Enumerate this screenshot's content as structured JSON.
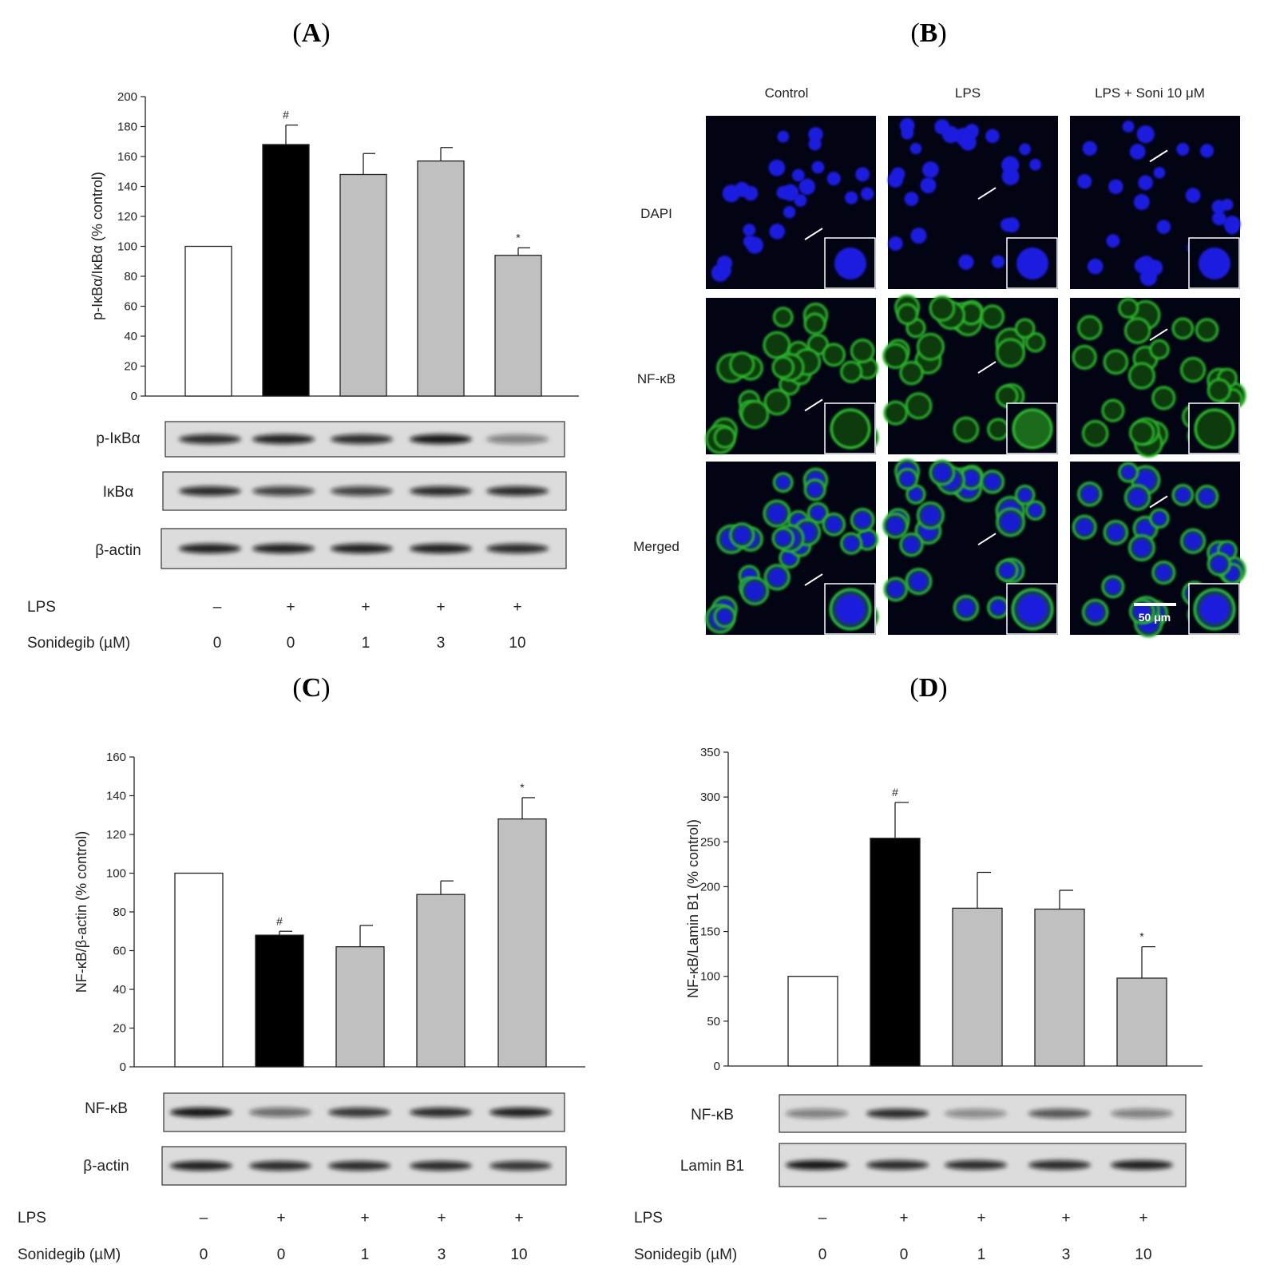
{
  "panels": {
    "A": {
      "label": "(A)",
      "letter": "A"
    },
    "B": {
      "label": "(B)",
      "letter": "B"
    },
    "C": {
      "label": "(C)",
      "letter": "C"
    },
    "D": {
      "label": "(D)",
      "letter": "D"
    }
  },
  "treatment_rows": {
    "lps_label": "LPS",
    "soni_label": "Sonidegib (µM)",
    "lps": [
      "–",
      "+",
      "+",
      "+",
      "+"
    ],
    "soni": [
      "0",
      "0",
      "1",
      "3",
      "10"
    ]
  },
  "blots": {
    "A": [
      "p-IκBα",
      "IκBα",
      "β-actin"
    ],
    "C": [
      "NF-κB",
      "β-actin"
    ],
    "D": [
      "NF-κB",
      "Lamin B1"
    ]
  },
  "microscopy": {
    "columns": [
      "Control",
      "LPS",
      "LPS + Soni 10 μM"
    ],
    "rows": [
      "DAPI",
      "NF-κB",
      "Merged"
    ],
    "scale_bar": "50 μm",
    "colors": {
      "dapi": "#1a1adf",
      "nfkb": "#2fc02f",
      "background": "#020414"
    }
  },
  "colors": {
    "control_bar": "#ffffff",
    "lps_bar": "#000000",
    "soni_bar": "#c0c0c0"
  },
  "chart_data": [
    {
      "panel": "A",
      "type": "bar",
      "categories": [
        "0",
        "0",
        "1",
        "3",
        "10"
      ],
      "values": [
        100,
        168,
        148,
        157,
        94
      ],
      "errors": [
        0,
        13,
        14,
        9,
        5
      ],
      "significance": [
        "",
        "#",
        "",
        "",
        "*"
      ],
      "ylabel": "p-IκBα/IκBα (% control)",
      "ylim": [
        0,
        200
      ],
      "yticks": [
        0,
        20,
        40,
        60,
        80,
        100,
        120,
        140,
        160,
        180,
        200
      ]
    },
    {
      "panel": "C",
      "type": "bar",
      "categories": [
        "0",
        "0",
        "1",
        "3",
        "10"
      ],
      "values": [
        100,
        68,
        62,
        89,
        128
      ],
      "errors": [
        0,
        2,
        11,
        7,
        11
      ],
      "significance": [
        "",
        "#",
        "",
        "",
        "*"
      ],
      "ylabel": "NF-κB/β-actin (% control)",
      "ylim": [
        0,
        160
      ],
      "yticks": [
        0,
        20,
        40,
        60,
        80,
        100,
        120,
        140,
        160
      ]
    },
    {
      "panel": "D",
      "type": "bar",
      "categories": [
        "0",
        "0",
        "1",
        "3",
        "10"
      ],
      "values": [
        100,
        254,
        176,
        175,
        98
      ],
      "errors": [
        0,
        40,
        40,
        21,
        35
      ],
      "significance": [
        "",
        "#",
        "",
        "",
        "*"
      ],
      "ylabel": "NF-κB/Lamin B1 (% control)",
      "ylim": [
        0,
        350
      ],
      "yticks": [
        0,
        50,
        100,
        150,
        200,
        250,
        300,
        350
      ]
    }
  ]
}
